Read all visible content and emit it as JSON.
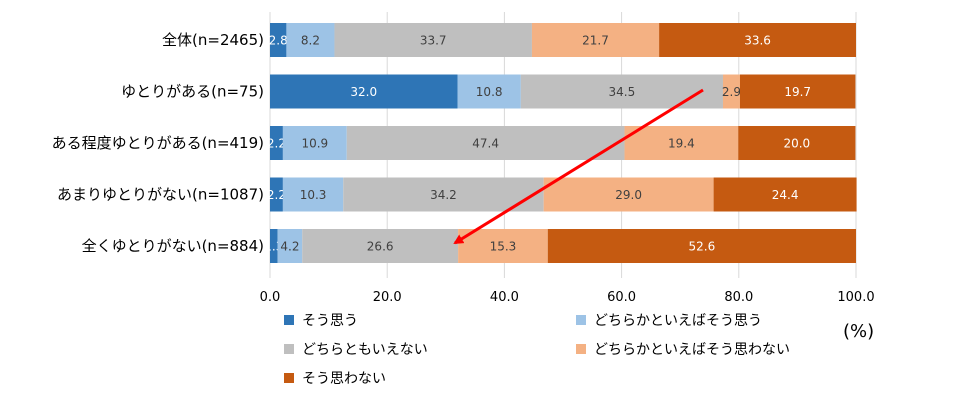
{
  "chart_data": {
    "type": "bar",
    "orientation": "horizontal",
    "stacked": true,
    "title": "",
    "xlabel": "",
    "ylabel": "",
    "unit": "(%)",
    "xlim": [
      0,
      100
    ],
    "xticks": [
      "0.0",
      "20.0",
      "40.0",
      "60.0",
      "80.0",
      "100.0"
    ],
    "grid": true,
    "legend_position": "bottom",
    "categories": [
      "全体(n=2465)",
      "ゆとりがある(n=75)",
      "ある程度ゆとりがある(n=419)",
      "あまりゆとりがない(n=1087)",
      "全くゆとりがない(n=884)"
    ],
    "series": [
      {
        "name": "そう思う",
        "color": "#2E75B6",
        "label_color": "#ffffff",
        "values": [
          2.8,
          32.0,
          2.2,
          2.2,
          1.3
        ]
      },
      {
        "name": "どちらかといえばそう思う",
        "color": "#9DC3E6",
        "label_color": "#404040",
        "values": [
          8.2,
          10.8,
          10.9,
          10.3,
          4.2
        ]
      },
      {
        "name": "どちらともいえない",
        "color": "#BFBFBF",
        "label_color": "#404040",
        "values": [
          33.7,
          34.5,
          47.4,
          34.2,
          26.6
        ]
      },
      {
        "name": "どちらかといえばそう思わない",
        "color": "#F4B183",
        "label_color": "#404040",
        "values": [
          21.7,
          2.9,
          19.4,
          29.0,
          15.3
        ]
      },
      {
        "name": "そう思わない",
        "color": "#C55A11",
        "label_color": "#ffffff",
        "values": [
          33.6,
          19.7,
          20.0,
          24.4,
          52.6
        ]
      }
    ],
    "annotation": {
      "type": "arrow",
      "color": "#FF0000",
      "description": "trend arrow from ゆとりがある row toward 全くゆとりがない row"
    }
  }
}
